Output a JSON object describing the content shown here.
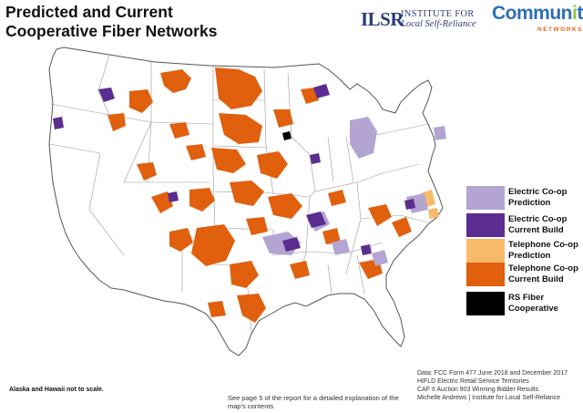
{
  "title": "Predicted and Current Cooperative Fiber Networks",
  "logos": {
    "ilsr_mark": "ILSR",
    "ilsr_line1": "INSTITUTE FOR",
    "ilsr_line2": "Local Self-Reliance",
    "cn_part1": "Commun",
    "cn_part2": "i",
    "cn_part3": "ty",
    "cn_sub": "NETWORKS"
  },
  "legend": [
    {
      "label": "Electric Co-op Prediction",
      "color": "#b3a4d2"
    },
    {
      "label": "Electric Co-op Current Build",
      "color": "#5b2d91"
    },
    {
      "label": "Telephone Co-op Prediction",
      "color": "#f9b96b"
    },
    {
      "label": "Telephone Co-op Current Build",
      "color": "#e0600d"
    },
    {
      "label": "RS Fiber Cooperative",
      "color": "#000000"
    }
  ],
  "colors": {
    "land": "#ffffff",
    "state_border": "#8a8a8a",
    "nation_border": "#555555"
  },
  "notes": {
    "scale": "Alaska and Hawaii not to scale.",
    "see_page": "See page 5 of the report for a detailed explanation of the map's contents"
  },
  "sources": [
    "Data: FCC Form 477 June 2018 and December 2017",
    "HIFLD Electric Retail Service Territories",
    "CAF II Auction 903 Winning Bidder Results",
    "Michelle Andrews | Institute for Local Self-Reliance"
  ]
}
